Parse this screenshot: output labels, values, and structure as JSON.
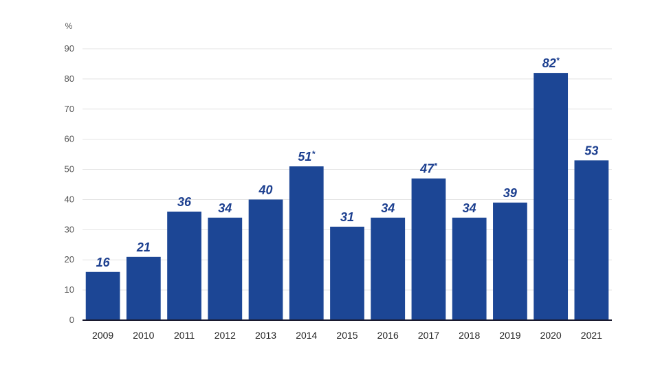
{
  "chart_data": {
    "type": "bar",
    "title": "",
    "xlabel": "",
    "ylabel": "%",
    "ylim": [
      0,
      90
    ],
    "yticks": [
      0,
      10,
      20,
      30,
      40,
      50,
      60,
      70,
      80,
      90
    ],
    "grid": true,
    "categories": [
      "2009",
      "2010",
      "2011",
      "2012",
      "2013",
      "2014",
      "2015",
      "2016",
      "2017",
      "2018",
      "2019",
      "2020",
      "2021"
    ],
    "values": [
      16,
      21,
      36,
      34,
      40,
      51,
      31,
      34,
      47,
      34,
      39,
      82,
      53
    ],
    "labels": [
      "16",
      "21",
      "36",
      "34",
      "40",
      "51",
      "31",
      "34",
      "47",
      "34",
      "39",
      "82",
      "53"
    ],
    "label_marks": [
      "",
      "",
      "",
      "",
      "",
      "*",
      "",
      "",
      "*",
      "",
      "",
      "*",
      ""
    ],
    "colors": {
      "bar": "#1c4695",
      "label": "#1c3f8f"
    }
  }
}
